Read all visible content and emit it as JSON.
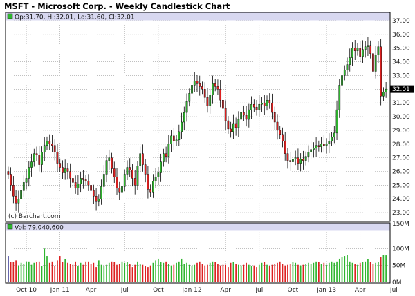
{
  "title": "MSFT - Microsoft Corp. - Weekly Candlestick Chart",
  "ohlc_label": "Op:31.70, Hi:32.01, Lo:31.60, Cl:32.01",
  "vol_label": "Vol: 79,040,600",
  "watermark": "(c) Barchart.com",
  "last_price_label": "32.01",
  "colors": {
    "up": "#2fb52f",
    "down": "#dd2020",
    "grid": "#9a9a9a",
    "header_bg": "#d8d8f0",
    "border": "#000000",
    "volume_first": "#2a2a8c"
  },
  "chart_data": [
    {
      "type": "candlestick",
      "title": "MSFT - Microsoft Corp. - Weekly Candlestick Chart",
      "yticks": [
        "23.00",
        "24.00",
        "25.00",
        "26.00",
        "27.00",
        "28.00",
        "29.00",
        "30.00",
        "31.00",
        "32.00",
        "33.00",
        "34.00",
        "35.00",
        "36.00",
        "37.00"
      ],
      "ylim": [
        22.4,
        37.0
      ],
      "xticks": [
        {
          "label": "Oct 10",
          "i": 7
        },
        {
          "label": "Jan 11",
          "i": 20
        },
        {
          "label": "Apr",
          "i": 32
        },
        {
          "label": "Jul",
          "i": 45
        },
        {
          "label": "Oct",
          "i": 58
        },
        {
          "label": "Jan 12",
          "i": 71
        },
        {
          "label": "Apr",
          "i": 84
        },
        {
          "label": "Jul",
          "i": 97
        },
        {
          "label": "Oct",
          "i": 110
        },
        {
          "label": "Jan 13",
          "i": 123
        },
        {
          "label": "Apr",
          "i": 136
        },
        {
          "label": "Jul",
          "i": 149
        }
      ],
      "closes": [
        25.8,
        25.0,
        24.2,
        23.7,
        24.0,
        24.6,
        25.2,
        25.5,
        26.3,
        26.7,
        27.3,
        27.2,
        26.5,
        27.4,
        27.9,
        28.2,
        28.0,
        27.9,
        27.4,
        26.6,
        26.3,
        25.9,
        26.2,
        26.0,
        25.5,
        25.2,
        24.8,
        25.1,
        25.5,
        25.4,
        25.3,
        25.0,
        24.6,
        24.2,
        23.8,
        24.0,
        24.9,
        25.8,
        26.8,
        27.0,
        26.2,
        25.6,
        24.8,
        24.5,
        24.9,
        25.8,
        26.3,
        26.1,
        25.5,
        25.0,
        26.4,
        27.3,
        26.5,
        25.8,
        24.7,
        24.5,
        25.3,
        25.6,
        25.9,
        26.7,
        27.3,
        27.1,
        28.0,
        28.6,
        28.2,
        28.3,
        28.9,
        29.6,
        30.3,
        31.1,
        31.7,
        32.3,
        32.6,
        32.4,
        32.2,
        32.0,
        31.4,
        30.8,
        31.6,
        32.4,
        32.2,
        32.0,
        31.2,
        30.6,
        29.7,
        29.1,
        28.9,
        29.5,
        29.2,
        29.8,
        30.3,
        30.1,
        29.8,
        30.5,
        30.9,
        30.7,
        30.5,
        30.9,
        31.0,
        30.8,
        31.2,
        31.0,
        30.3,
        29.6,
        29.0,
        28.7,
        28.2,
        27.3,
        26.8,
        26.7,
        26.9,
        27.0,
        26.6,
        26.9,
        26.8,
        27.1,
        27.4,
        27.6,
        27.7,
        27.9,
        27.8,
        28.0,
        27.9,
        28.0,
        28.2,
        28.5,
        28.8,
        30.5,
        32.3,
        33.0,
        33.4,
        33.8,
        34.3,
        35.0,
        34.8,
        35.0,
        34.4,
        34.9,
        35.1,
        35.2,
        34.6,
        33.3,
        34.5,
        35.1,
        31.5,
        31.8,
        32.01
      ],
      "volume_unit": "million shares",
      "volume_axis": [
        "0M",
        "50M",
        "100M",
        "150M"
      ],
      "volume_ylim": [
        0,
        150
      ],
      "volumes": [
        78,
        60,
        60,
        65,
        50,
        58,
        55,
        62,
        62,
        52,
        58,
        60,
        62,
        48,
        100,
        78,
        58,
        62,
        48,
        65,
        78,
        60,
        68,
        58,
        55,
        52,
        62,
        48,
        58,
        52,
        62,
        62,
        55,
        58,
        45,
        65,
        52,
        48,
        52,
        58,
        62,
        60,
        52,
        55,
        62,
        58,
        60,
        55,
        45,
        52,
        62,
        55,
        52,
        48,
        45,
        50,
        58,
        65,
        70,
        60,
        58,
        62,
        55,
        50,
        52,
        58,
        62,
        70,
        55,
        58,
        52,
        48,
        52,
        58,
        62,
        55,
        50,
        52,
        58,
        62,
        60,
        55,
        50,
        52,
        52,
        45,
        58,
        60,
        55,
        52,
        50,
        52,
        58,
        52,
        48,
        50,
        45,
        52,
        58,
        60,
        52,
        48,
        52,
        55,
        58,
        62,
        55,
        50,
        52,
        55,
        60,
        58,
        52,
        50,
        52,
        55,
        58,
        55,
        58,
        62,
        60,
        55,
        58,
        52,
        58,
        62,
        58,
        62,
        70,
        75,
        78,
        82,
        62,
        58,
        55,
        52,
        58,
        60,
        62,
        68,
        60,
        55,
        58,
        60,
        75,
        82,
        80
      ]
    }
  ]
}
